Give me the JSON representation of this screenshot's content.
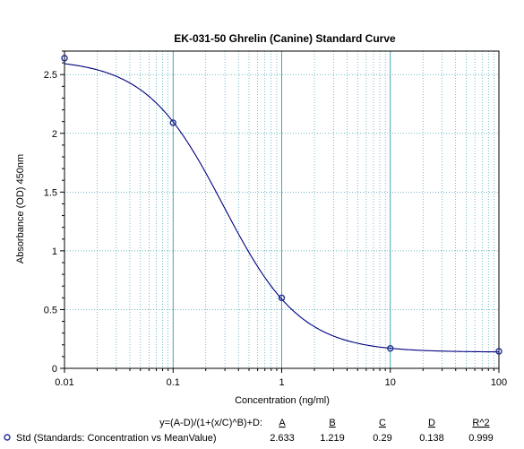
{
  "chart_data": {
    "type": "scatter",
    "title": "EK-031-50 Ghrelin (Canine) Standard Curve",
    "xlabel": "Concentration (ng/ml)",
    "ylabel": "Absorbance (OD) 450nm",
    "x_scale": "log",
    "xlim": [
      0.01,
      100
    ],
    "ylim": [
      0,
      2.7
    ],
    "x_ticks": [
      "0.01",
      "0.1",
      "1",
      "10",
      "100"
    ],
    "y_ticks": [
      "0",
      "0.5",
      "1",
      "1.5",
      "2",
      "2.5"
    ],
    "grid": true,
    "series": [
      {
        "name": "Std (Standards: Concentration vs MeanValue)",
        "x": [
          0.01,
          0.1,
          1,
          10,
          100
        ],
        "y": [
          2.64,
          2.09,
          0.6,
          0.17,
          0.145
        ],
        "color": "#1f2f8f"
      }
    ],
    "fit": {
      "equation": "y=(A-D)/(1+(x/C)^B)+D:",
      "headers": [
        "A",
        "B",
        "C",
        "D",
        "R^2"
      ],
      "values": [
        "2.633",
        "1.219",
        "0.29",
        "0.138",
        "0.999"
      ],
      "color": "#000080"
    },
    "grid_color": "#1a8fa8"
  }
}
